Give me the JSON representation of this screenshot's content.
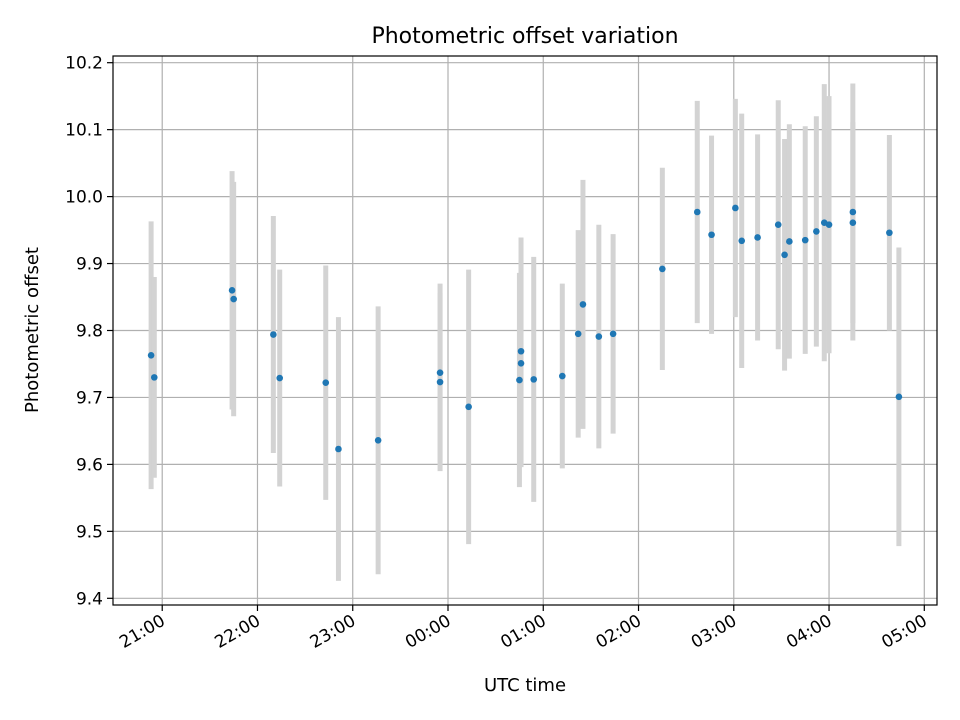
{
  "chart_data": {
    "type": "scatter",
    "title": "Photometric offset variation",
    "xlabel": "UTC time",
    "ylabel": "Photometric offset",
    "x_range": [
      "20:29",
      "05:08"
    ],
    "ylim": [
      9.39,
      10.21
    ],
    "grid": true,
    "legend": "none",
    "x_ticks": [
      "21:00",
      "22:00",
      "23:00",
      "00:00",
      "01:00",
      "02:00",
      "03:00",
      "04:00",
      "05:00"
    ],
    "y_ticks": [
      "9.4",
      "9.5",
      "9.6",
      "9.7",
      "9.8",
      "9.9",
      "10.0",
      "10.1",
      "10.2"
    ],
    "colors": {
      "marker": "#1f77b4",
      "errorbar": "#d3d3d3"
    },
    "points": [
      {
        "x": "20:53",
        "y": 9.763,
        "err": 0.2
      },
      {
        "x": "20:55",
        "y": 9.73,
        "err": 0.15
      },
      {
        "x": "21:44",
        "y": 9.86,
        "err": 0.178
      },
      {
        "x": "21:45",
        "y": 9.847,
        "err": 0.175
      },
      {
        "x": "22:10",
        "y": 9.794,
        "err": 0.177
      },
      {
        "x": "22:14",
        "y": 9.729,
        "err": 0.162
      },
      {
        "x": "22:43",
        "y": 9.722,
        "err": 0.175
      },
      {
        "x": "22:51",
        "y": 9.623,
        "err": 0.197
      },
      {
        "x": "23:16",
        "y": 9.636,
        "err": 0.2
      },
      {
        "x": "23:55",
        "y": 9.737,
        "err": 0.133
      },
      {
        "x": "23:55",
        "y": 9.723,
        "err": 0.133
      },
      {
        "x": "00:13",
        "y": 9.686,
        "err": 0.205
      },
      {
        "x": "00:45",
        "y": 9.726,
        "err": 0.16
      },
      {
        "x": "00:46",
        "y": 9.751,
        "err": 0.155
      },
      {
        "x": "00:46",
        "y": 9.769,
        "err": 0.17
      },
      {
        "x": "00:54",
        "y": 9.727,
        "err": 0.183
      },
      {
        "x": "01:12",
        "y": 9.732,
        "err": 0.138
      },
      {
        "x": "01:22",
        "y": 9.795,
        "err": 0.155
      },
      {
        "x": "01:25",
        "y": 9.839,
        "err": 0.186
      },
      {
        "x": "01:35",
        "y": 9.791,
        "err": 0.167
      },
      {
        "x": "01:44",
        "y": 9.795,
        "err": 0.149
      },
      {
        "x": "02:15",
        "y": 9.892,
        "err": 0.151
      },
      {
        "x": "02:37",
        "y": 9.977,
        "err": 0.166
      },
      {
        "x": "02:46",
        "y": 9.943,
        "err": 0.148
      },
      {
        "x": "03:01",
        "y": 9.983,
        "err": 0.163
      },
      {
        "x": "03:05",
        "y": 9.934,
        "err": 0.19
      },
      {
        "x": "03:15",
        "y": 9.939,
        "err": 0.154
      },
      {
        "x": "03:28",
        "y": 9.958,
        "err": 0.186
      },
      {
        "x": "03:32",
        "y": 9.913,
        "err": 0.173
      },
      {
        "x": "03:35",
        "y": 9.933,
        "err": 0.175
      },
      {
        "x": "03:45",
        "y": 9.935,
        "err": 0.17
      },
      {
        "x": "03:52",
        "y": 9.948,
        "err": 0.172
      },
      {
        "x": "03:57",
        "y": 9.961,
        "err": 0.207
      },
      {
        "x": "04:00",
        "y": 9.958,
        "err": 0.192
      },
      {
        "x": "04:15",
        "y": 9.977,
        "err": 0.192
      },
      {
        "x": "04:15",
        "y": 9.961,
        "err": 0.15
      },
      {
        "x": "04:38",
        "y": 9.946,
        "err": 0.146
      },
      {
        "x": "04:44",
        "y": 9.701,
        "err": 0.223
      }
    ]
  }
}
